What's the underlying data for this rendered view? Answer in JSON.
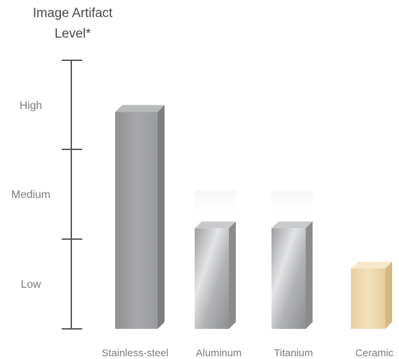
{
  "chart_data": {
    "type": "bar",
    "title": "",
    "ylabel_lines": [
      "Image Artifact",
      "Level*"
    ],
    "categories": [
      "Stainless-steel",
      "Aluminum",
      "Titanium",
      "Ceramic"
    ],
    "values": [
      2.5,
      1.2,
      1.2,
      0.75
    ],
    "ylim": [
      0,
      3
    ],
    "ytick_labels": [
      "Low",
      "Medium",
      "High"
    ],
    "bar_colors": [
      "#9a9b9d",
      "#c2c3c5",
      "#c2c3c5",
      "#eed7a8"
    ],
    "grid": false,
    "legend": "none"
  }
}
